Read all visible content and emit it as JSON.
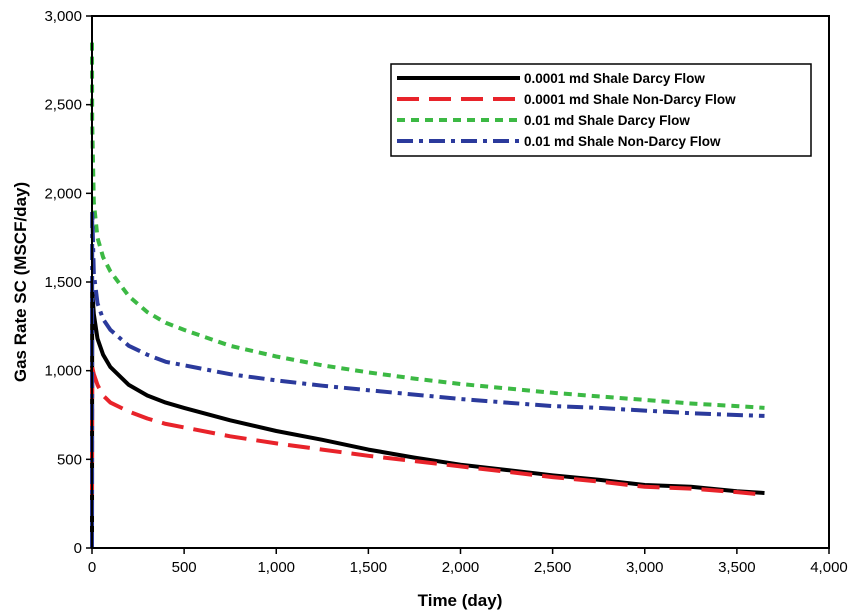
{
  "chart_data": {
    "type": "line",
    "xlabel": "Time (day)",
    "ylabel": "Gas Rate SC (MSCF/day)",
    "xlim": [
      0,
      4000
    ],
    "ylim": [
      0,
      3000
    ],
    "x_ticks": [
      0,
      500,
      1000,
      1500,
      2000,
      2500,
      3000,
      3500,
      4000
    ],
    "x_tick_labels": [
      "0",
      "500",
      "1,000",
      "1,500",
      "2,000",
      "2,500",
      "3,000",
      "3,500",
      "4,000"
    ],
    "y_ticks": [
      0,
      500,
      1000,
      1500,
      2000,
      2500,
      3000
    ],
    "y_tick_labels": [
      "0",
      "500",
      "1,000",
      "1,500",
      "2,000",
      "2,500",
      "3,000"
    ],
    "grid": false,
    "legend_position": "top-right",
    "series": [
      {
        "name": "0.0001 md Shale Darcy Flow",
        "color": "#000000",
        "style": "solid",
        "points": [
          [
            0,
            0
          ],
          [
            1,
            1450
          ],
          [
            10,
            1320
          ],
          [
            30,
            1180
          ],
          [
            60,
            1090
          ],
          [
            100,
            1020
          ],
          [
            200,
            920
          ],
          [
            300,
            860
          ],
          [
            400,
            820
          ],
          [
            500,
            790
          ],
          [
            750,
            720
          ],
          [
            1000,
            660
          ],
          [
            1250,
            610
          ],
          [
            1500,
            555
          ],
          [
            1750,
            510
          ],
          [
            2000,
            470
          ],
          [
            2250,
            440
          ],
          [
            2500,
            410
          ],
          [
            2750,
            385
          ],
          [
            3000,
            355
          ],
          [
            3250,
            345
          ],
          [
            3500,
            320
          ],
          [
            3650,
            310
          ]
        ]
      },
      {
        "name": "0.0001 md Shale Non-Darcy Flow",
        "color": "#e8232a",
        "style": "dashed",
        "points": [
          [
            0,
            300
          ],
          [
            1,
            1020
          ],
          [
            10,
            980
          ],
          [
            30,
            920
          ],
          [
            60,
            860
          ],
          [
            100,
            820
          ],
          [
            200,
            770
          ],
          [
            300,
            730
          ],
          [
            400,
            700
          ],
          [
            500,
            680
          ],
          [
            750,
            630
          ],
          [
            1000,
            590
          ],
          [
            1250,
            555
          ],
          [
            1500,
            520
          ],
          [
            1750,
            490
          ],
          [
            2000,
            460
          ],
          [
            2250,
            430
          ],
          [
            2500,
            400
          ],
          [
            2750,
            375
          ],
          [
            3000,
            345
          ],
          [
            3250,
            335
          ],
          [
            3500,
            315
          ],
          [
            3650,
            300
          ]
        ]
      },
      {
        "name": "0.01 md Shale Darcy Flow",
        "color": "#3cb944",
        "style": "dotted",
        "points": [
          [
            0,
            2850
          ],
          [
            1,
            2400
          ],
          [
            10,
            1950
          ],
          [
            30,
            1750
          ],
          [
            60,
            1640
          ],
          [
            100,
            1560
          ],
          [
            200,
            1420
          ],
          [
            300,
            1330
          ],
          [
            400,
            1270
          ],
          [
            500,
            1230
          ],
          [
            750,
            1140
          ],
          [
            1000,
            1080
          ],
          [
            1250,
            1030
          ],
          [
            1500,
            990
          ],
          [
            1750,
            955
          ],
          [
            2000,
            925
          ],
          [
            2250,
            900
          ],
          [
            2500,
            875
          ],
          [
            2750,
            855
          ],
          [
            3000,
            835
          ],
          [
            3250,
            815
          ],
          [
            3500,
            800
          ],
          [
            3650,
            790
          ]
        ]
      },
      {
        "name": "0.01 md Shale Non-Darcy Flow",
        "color": "#2b3a9c",
        "style": "dashdot",
        "points": [
          [
            0,
            0
          ],
          [
            1,
            1900
          ],
          [
            10,
            1550
          ],
          [
            30,
            1380
          ],
          [
            60,
            1290
          ],
          [
            100,
            1230
          ],
          [
            200,
            1140
          ],
          [
            300,
            1090
          ],
          [
            400,
            1050
          ],
          [
            500,
            1030
          ],
          [
            750,
            980
          ],
          [
            1000,
            945
          ],
          [
            1250,
            915
          ],
          [
            1500,
            890
          ],
          [
            1750,
            865
          ],
          [
            2000,
            840
          ],
          [
            2250,
            820
          ],
          [
            2500,
            800
          ],
          [
            2750,
            790
          ],
          [
            3000,
            775
          ],
          [
            3250,
            760
          ],
          [
            3500,
            750
          ],
          [
            3650,
            745
          ]
        ]
      }
    ]
  }
}
